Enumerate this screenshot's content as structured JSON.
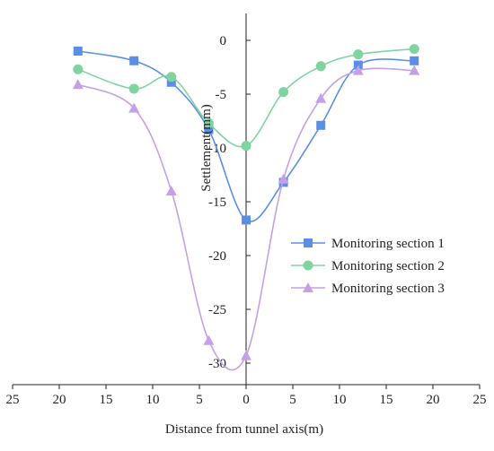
{
  "chart_data": {
    "type": "line",
    "title": "",
    "xlabel": "Distance from tunnel axis(m)",
    "ylabel": "Settlement(mm)",
    "xlim": [
      -25,
      25
    ],
    "ylim": [
      -32,
      2.5
    ],
    "x_ticks": [
      -25,
      -20,
      -15,
      -10,
      -5,
      0,
      5,
      10,
      15,
      20,
      25
    ],
    "x_tick_labels": [
      "25",
      "20",
      "15",
      "10",
      "5",
      "0",
      "5",
      "10",
      "15",
      "20",
      "25"
    ],
    "y_ticks": [
      0,
      -5,
      -10,
      -15,
      -20,
      -25,
      -30
    ],
    "y_tick_labels": [
      "0",
      "-5",
      "-10",
      "-15",
      "-20",
      "-25",
      "-30"
    ],
    "grid": false,
    "legend_position": "right",
    "x": [
      -18,
      -12,
      -8,
      -4,
      0,
      4,
      8,
      12,
      18
    ],
    "series": [
      {
        "name": "Monitoring section 1",
        "color": "#5b8fe6",
        "marker": "square",
        "values": [
          -1.0,
          -1.9,
          -3.9,
          -8.3,
          -16.7,
          -13.2,
          -7.9,
          -2.3,
          -1.9
        ]
      },
      {
        "name": "Monitoring section 2",
        "color": "#7fd4a0",
        "marker": "circle",
        "values": [
          -2.7,
          -4.5,
          -3.4,
          -7.7,
          -9.8,
          -4.8,
          -2.4,
          -1.3,
          -0.8
        ]
      },
      {
        "name": "Monitoring section 3",
        "color": "#c4a0e6",
        "marker": "triangle",
        "values": [
          -4.1,
          -6.3,
          -14.0,
          -27.9,
          -29.3,
          -12.9,
          -5.4,
          -2.8,
          -2.8
        ]
      }
    ]
  }
}
